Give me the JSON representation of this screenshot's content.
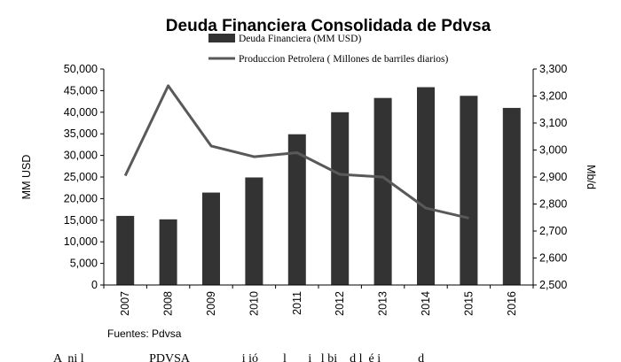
{
  "chart_data": {
    "type": "bar",
    "title": "Deuda Financiera Consolidada de Pdvsa",
    "categories": [
      "2007",
      "2008",
      "2009",
      "2010",
      "2011",
      "2012",
      "2013",
      "2014",
      "2015",
      "2016"
    ],
    "series": [
      {
        "name": "Deuda Financiera (MM USD)",
        "kind": "bar",
        "axis": "left",
        "color": "#333333",
        "values": [
          16000,
          15200,
          21400,
          24900,
          34900,
          40000,
          43300,
          45800,
          43800,
          41000
        ]
      },
      {
        "name": "Produccion Petrolera ( Millones de barriles diarios)",
        "kind": "line",
        "axis": "right",
        "color": "#595959",
        "values": [
          2905,
          3238,
          3015,
          2975,
          2990,
          2910,
          2900,
          2785,
          2748,
          null
        ]
      }
    ],
    "ylabel": "MM USD",
    "y2label": "Mb/d",
    "ylim": [
      0,
      50000
    ],
    "yticks": [
      "0",
      "5,000",
      "10,000",
      "15,000",
      "20,000",
      "25,000",
      "30,000",
      "35,000",
      "40,000",
      "45,000",
      "50,000"
    ],
    "y2lim": [
      2500,
      3300
    ],
    "y2ticks": [
      "2,500",
      "2,600",
      "2,700",
      "2,800",
      "2,900",
      "3,000",
      "3,100",
      "3,200",
      "3,300"
    ],
    "legend_placement": "top",
    "grid": false
  },
  "source_note": "Fuentes:  Pdvsa",
  "caption_fragment": "A  ni l                     PDVSA                 i ió        l       i   l bi    d l  é i            d"
}
